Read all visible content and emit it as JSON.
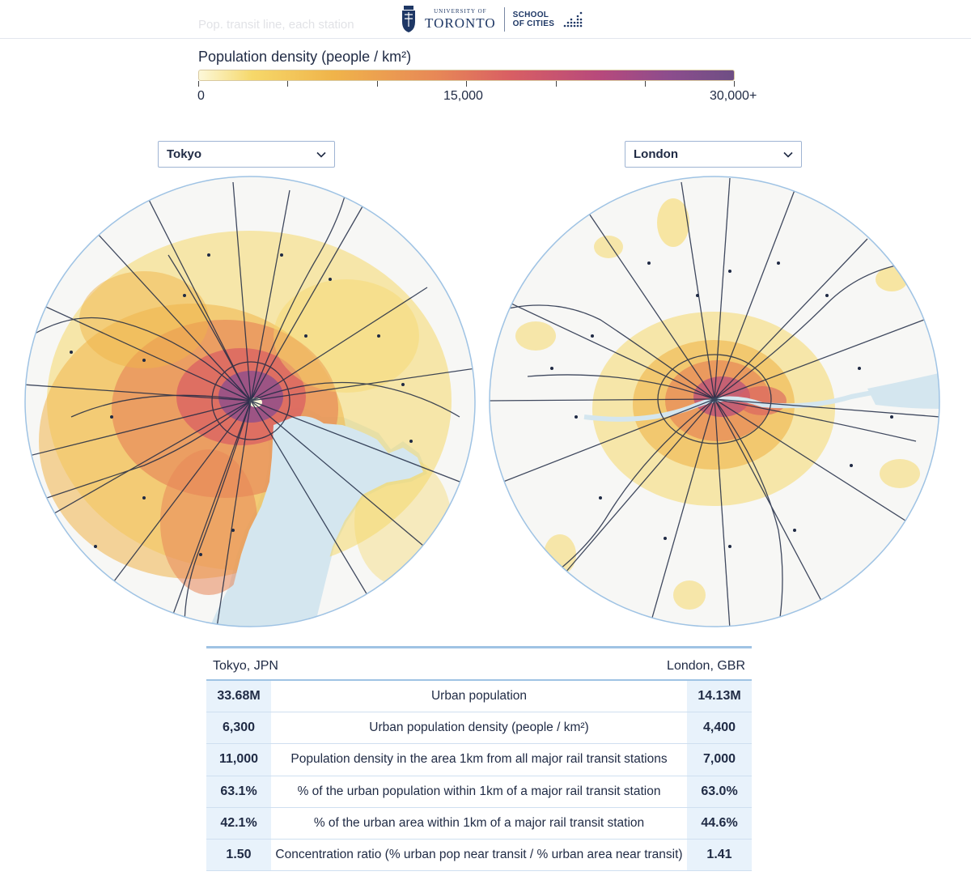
{
  "header": {
    "brand_university_small": "UNIVERSITY OF",
    "brand_university": "TORONTO",
    "brand_school_line1": "SCHOOL",
    "brand_school_line2": "OF CITIES",
    "ghost_text": "Pop. transit line, each station"
  },
  "legend": {
    "title": "Population density (people / km²)",
    "min_label": "0",
    "mid_label": "15,000",
    "max_label": "30,000+",
    "colors": [
      "#fcf8d9",
      "#f6d86a",
      "#f0b44a",
      "#e78657",
      "#d95f63",
      "#b7497c",
      "#8c4d8d",
      "#6e4e84"
    ]
  },
  "selectors": {
    "left": "Tokyo",
    "right": "London"
  },
  "table": {
    "left_city": "Tokyo, JPN",
    "right_city": "London, GBR",
    "rows": [
      {
        "left": "33.68M",
        "label": "Urban population",
        "right": "14.13M"
      },
      {
        "left": "6,300",
        "label": "Urban population density (people / km²)",
        "right": "4,400"
      },
      {
        "left": "11,000",
        "label": "Population density in the area 1km from all major rail transit stations",
        "right": "7,000"
      },
      {
        "left": "63.1%",
        "label": "% of the urban population within 1km of a major rail transit station",
        "right": "63.0%"
      },
      {
        "left": "42.1%",
        "label": "% of the urban area within 1km of a major rail transit station",
        "right": "44.6%"
      },
      {
        "left": "1.50",
        "label": "Concentration ratio (% urban pop near transit / % urban area near transit)",
        "right": "1.41"
      }
    ]
  },
  "map_colors": {
    "water": "#d4e6ef",
    "land": "#f7f7f5",
    "rail": "#1f2a44",
    "border": "#9fc3e4"
  }
}
